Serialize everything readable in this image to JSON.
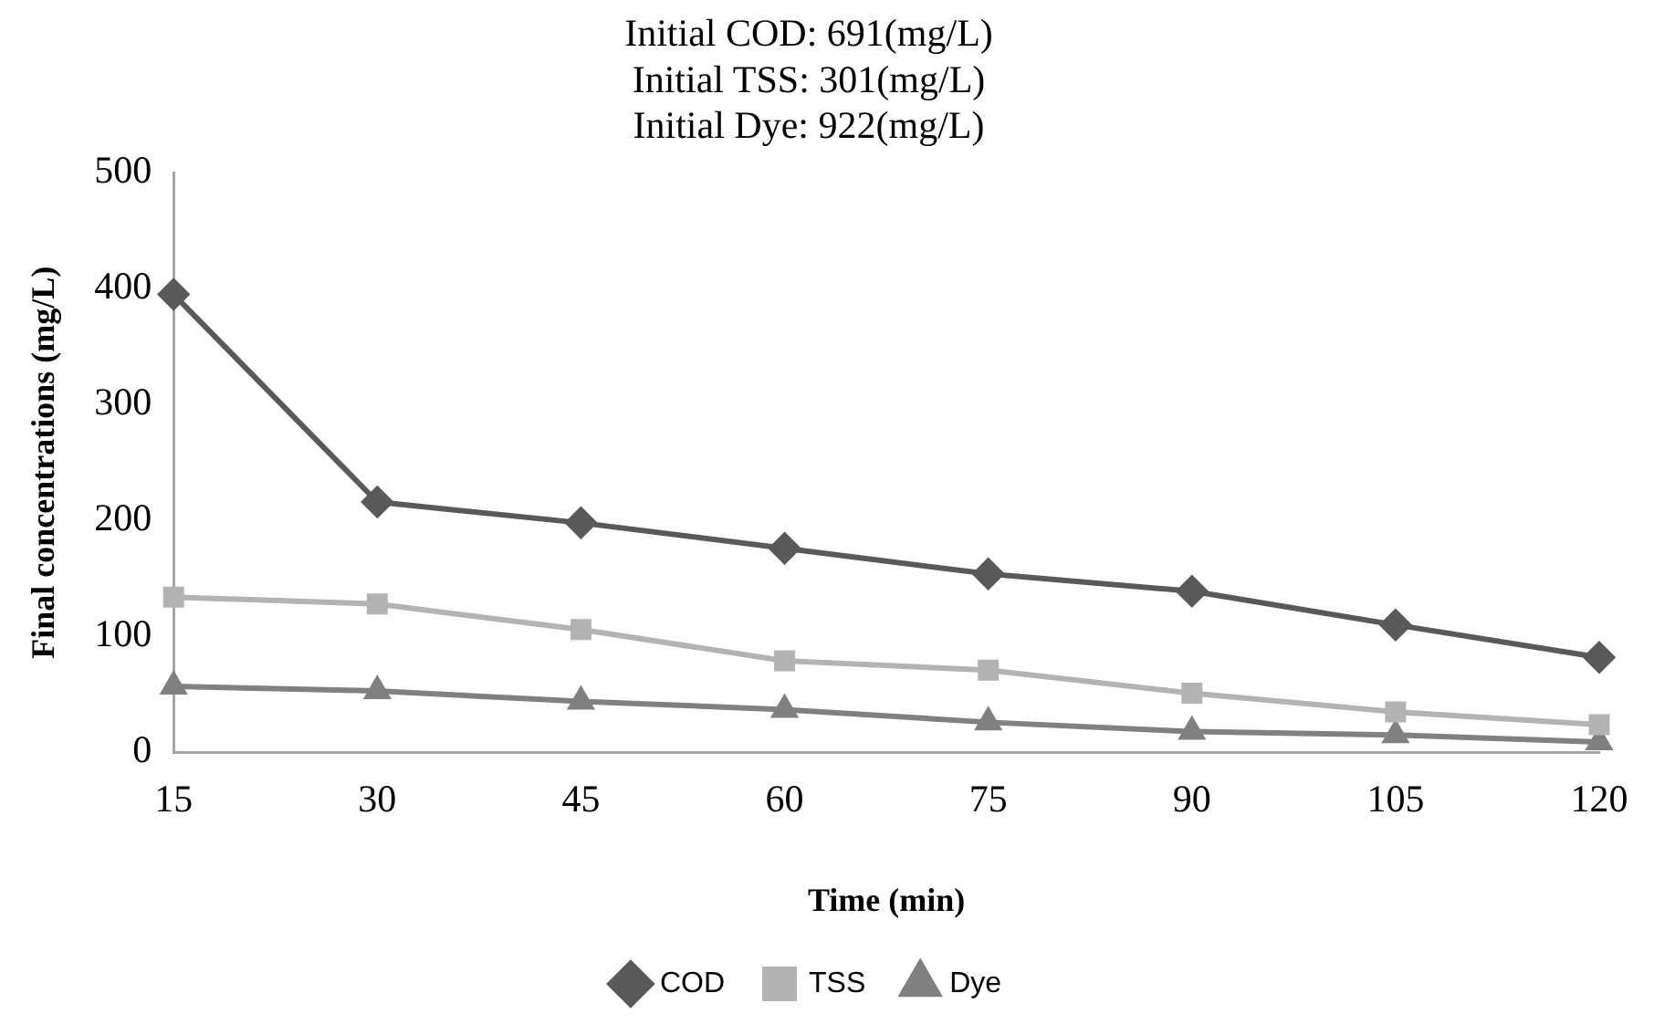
{
  "chart_data": {
    "type": "line",
    "title": "Initial COD: 691(mg/L)\nInitial TSS: 301(mg/L)\nInitial Dye: 922(mg/L)",
    "xlabel": "Time (min)",
    "ylabel": "Final concentrations (mg/L)",
    "categories": [
      "15",
      "30",
      "45",
      "60",
      "75",
      "90",
      "105",
      "120"
    ],
    "series": [
      {
        "name": "COD",
        "color": "#595959",
        "marker": "diamond",
        "values": [
          395,
          216,
          198,
          176,
          154,
          139,
          110,
          82
        ]
      },
      {
        "name": "TSS",
        "color": "#b3b3b3",
        "marker": "square",
        "values": [
          134,
          128,
          106,
          79,
          71,
          51,
          35,
          24
        ]
      },
      {
        "name": "Dye",
        "color": "#808080",
        "marker": "triangle",
        "values": [
          57,
          53,
          44,
          37,
          26,
          18,
          15,
          9
        ]
      }
    ],
    "ylim": [
      0,
      500
    ],
    "yticks": [
      0,
      100,
      200,
      300,
      400,
      500
    ],
    "grid": false,
    "legend": "bottom",
    "line_style": "solid"
  }
}
